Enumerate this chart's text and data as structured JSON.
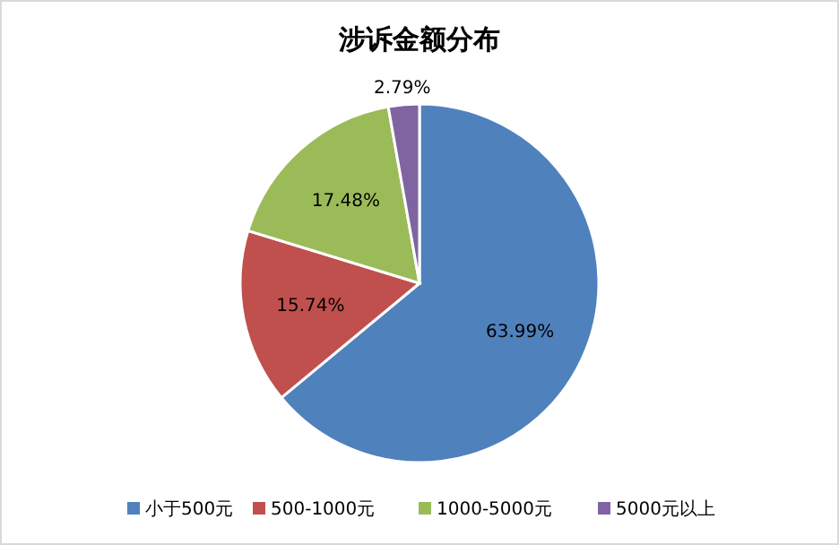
{
  "chart_data": {
    "type": "pie",
    "title": "涉诉金额分布",
    "categories": [
      "小于500元",
      "500-1000元",
      "1000-5000元",
      "5000元以上"
    ],
    "values": [
      63.99,
      15.74,
      17.48,
      2.79
    ],
    "value_labels": [
      "63.99%",
      "15.74%",
      "17.48%",
      "2.79%"
    ],
    "colors": [
      "#4f81bd",
      "#c0504d",
      "#9bbb59",
      "#8064a2"
    ],
    "legend": "bottom"
  }
}
